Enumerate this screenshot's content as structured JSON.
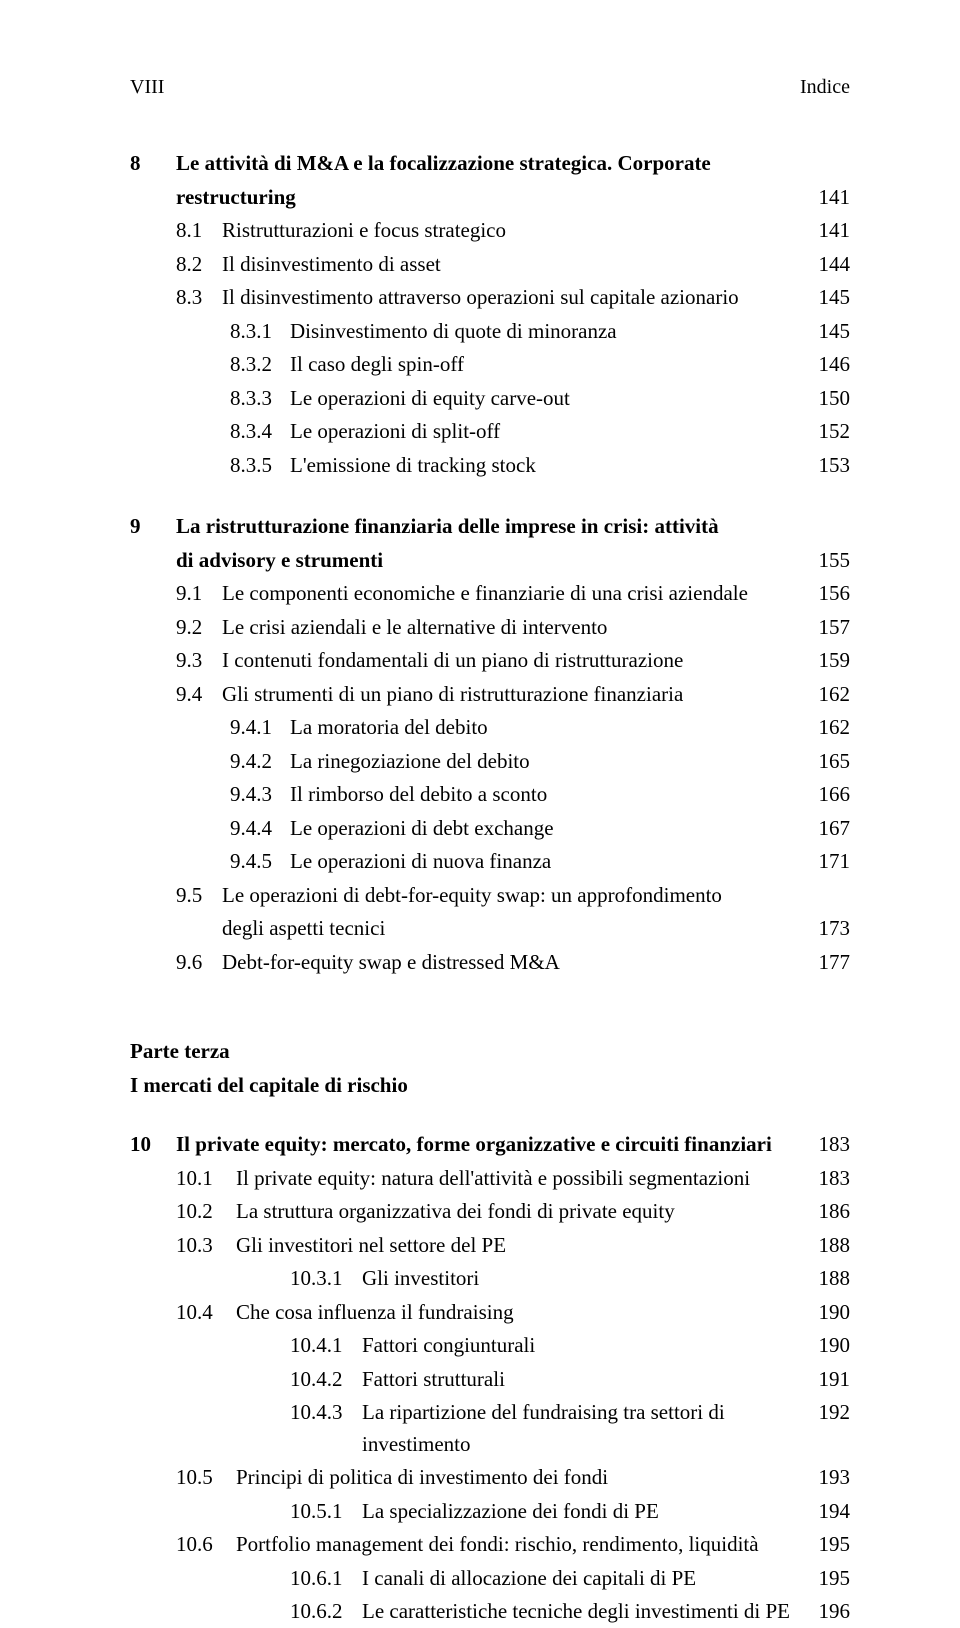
{
  "header": {
    "left": "VIII",
    "right": "Indice"
  },
  "chapter8": {
    "num": "8",
    "title_line1": "Le attività di M&A e la focalizzazione strategica. Corporate",
    "title_line2": "restructuring",
    "page": "141",
    "rows": [
      {
        "lvl": 0,
        "num": "8.1",
        "text": "Ristrutturazioni e focus strategico",
        "page": "141"
      },
      {
        "lvl": 0,
        "num": "8.2",
        "text": "Il disinvestimento di asset",
        "page": "144"
      },
      {
        "lvl": 0,
        "num": "8.3",
        "text": "Il disinvestimento attraverso operazioni sul capitale azionario",
        "page": "145"
      },
      {
        "lvl": 1,
        "num": "8.3.1",
        "text": "Disinvestimento di quote di minoranza",
        "page": "145"
      },
      {
        "lvl": 1,
        "num": "8.3.2",
        "text": "Il caso degli spin-off",
        "page": "146"
      },
      {
        "lvl": 1,
        "num": "8.3.3",
        "text": "Le operazioni di equity carve-out",
        "page": "150"
      },
      {
        "lvl": 1,
        "num": "8.3.4",
        "text": "Le operazioni di split-off",
        "page": "152"
      },
      {
        "lvl": 1,
        "num": "8.3.5",
        "text": "L'emissione di tracking stock",
        "page": "153"
      }
    ]
  },
  "chapter9": {
    "num": "9",
    "title_line1": "La ristrutturazione finanziaria delle imprese in crisi: attività",
    "title_line2": "di advisory e strumenti",
    "page": "155",
    "rows": [
      {
        "lvl": 0,
        "num": "9.1",
        "text": "Le componenti economiche e finanziarie di una crisi aziendale",
        "page": "156"
      },
      {
        "lvl": 0,
        "num": "9.2",
        "text": "Le crisi aziendali e le alternative di intervento",
        "page": "157"
      },
      {
        "lvl": 0,
        "num": "9.3",
        "text": "I contenuti fondamentali di un piano di ristrutturazione",
        "page": "159"
      },
      {
        "lvl": 0,
        "num": "9.4",
        "text": "Gli strumenti di un piano di ristrutturazione finanziaria",
        "page": "162"
      },
      {
        "lvl": 1,
        "num": "9.4.1",
        "text": "La moratoria del debito",
        "page": "162"
      },
      {
        "lvl": 1,
        "num": "9.4.2",
        "text": "La rinegoziazione del debito",
        "page": "165"
      },
      {
        "lvl": 1,
        "num": "9.4.3",
        "text": "Il rimborso del debito a sconto",
        "page": "166"
      },
      {
        "lvl": 1,
        "num": "9.4.4",
        "text": "Le operazioni di debt exchange",
        "page": "167"
      },
      {
        "lvl": 1,
        "num": "9.4.5",
        "text": "Le operazioni di nuova finanza",
        "page": "171"
      },
      {
        "lvl": 0,
        "num": "9.5",
        "text": "Le operazioni di debt-for-equity swap: un approfondimento",
        "page": ""
      },
      {
        "lvl": 0,
        "num": "",
        "text": "degli aspetti tecnici",
        "page": "173"
      },
      {
        "lvl": 0,
        "num": "9.6",
        "text": "Debt-for-equity swap e distressed M&A",
        "page": "177"
      }
    ]
  },
  "part3": {
    "label": "Parte terza",
    "title": "I mercati del capitale di rischio"
  },
  "chapter10": {
    "num": "10",
    "title": "Il private equity: mercato, forme organizzative e circuiti finanziari",
    "page": "183",
    "rows": [
      {
        "lvl": 0,
        "num": "10.1",
        "text": "Il private equity: natura dell'attività e possibili segmentazioni",
        "page": "183"
      },
      {
        "lvl": 0,
        "num": "10.2",
        "text": "La struttura organizzativa dei fondi di private equity",
        "page": "186"
      },
      {
        "lvl": 0,
        "num": "10.3",
        "text": "Gli investitori nel settore del PE",
        "page": "188"
      },
      {
        "lvl": 2,
        "num": "10.3.1",
        "text": "Gli investitori",
        "page": "188"
      },
      {
        "lvl": 0,
        "num": "10.4",
        "text": "Che cosa influenza il fundraising",
        "page": "190"
      },
      {
        "lvl": 2,
        "num": "10.4.1",
        "text": "Fattori congiunturali",
        "page": "190"
      },
      {
        "lvl": 2,
        "num": "10.4.2",
        "text": "Fattori strutturali",
        "page": "191"
      },
      {
        "lvl": 2,
        "num": "10.4.3",
        "text": "La ripartizione del fundraising tra settori di investimento",
        "page": "192"
      },
      {
        "lvl": 0,
        "num": "10.5",
        "text": "Principi di politica di investimento dei fondi",
        "page": "193"
      },
      {
        "lvl": 2,
        "num": "10.5.1",
        "text": "La specializzazione dei fondi di PE",
        "page": "194"
      },
      {
        "lvl": 0,
        "num": "10.6",
        "text": "Portfolio management dei fondi: rischio, rendimento, liquidità",
        "page": "195"
      },
      {
        "lvl": 2,
        "num": "10.6.1",
        "text": "I canali di allocazione dei capitali di PE",
        "page": "195"
      },
      {
        "lvl": 2,
        "num": "10.6.2",
        "text": "Le caratteristiche tecniche degli investimenti di PE",
        "page": "196"
      }
    ]
  }
}
